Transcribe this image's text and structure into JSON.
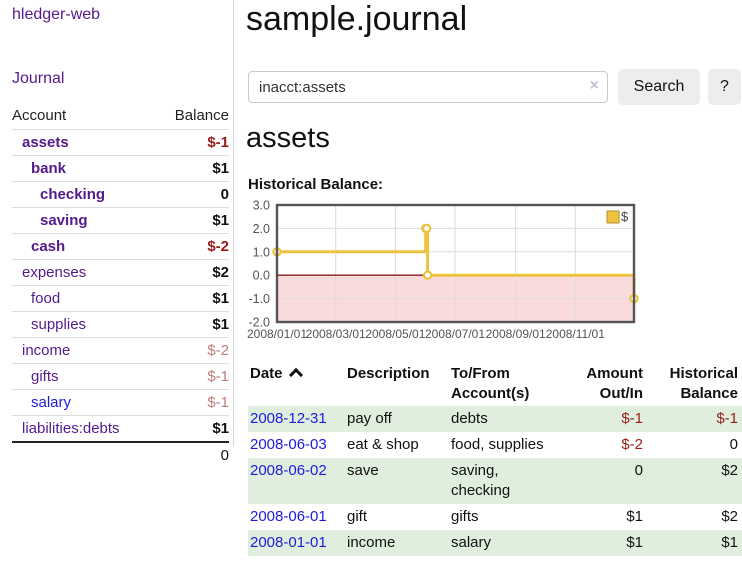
{
  "colors": {
    "purple_link": "#551a8b",
    "blue_link": "#1c1ce0",
    "negative_strong": "#9b1b1b",
    "negative_dim": "#bd7d7d",
    "row_green": "#dfeedd",
    "button_bg": "#ededed"
  },
  "sidebar": {
    "brand": "hledger-web",
    "nav_journal": "Journal",
    "accounts": {
      "headers": {
        "account": "Account",
        "balance": "Balance"
      },
      "rows": [
        {
          "name": "assets",
          "depth": 1,
          "bold": true,
          "balance": "$-1",
          "balance_class": "neg"
        },
        {
          "name": "bank",
          "depth": 2,
          "bold": true,
          "balance": "$1",
          "balance_class": "pos"
        },
        {
          "name": "checking",
          "depth": 3,
          "bold": true,
          "balance": "0",
          "balance_class": "pos"
        },
        {
          "name": "saving",
          "depth": 3,
          "bold": true,
          "balance": "$1",
          "balance_class": "pos"
        },
        {
          "name": "cash",
          "depth": 2,
          "bold": true,
          "balance": "$-2",
          "balance_class": "neg"
        },
        {
          "name": "expenses",
          "depth": 1,
          "bold": false,
          "balance": "$2",
          "balance_class": "pos"
        },
        {
          "name": "food",
          "depth": 2,
          "bold": false,
          "balance": "$1",
          "balance_class": "pos"
        },
        {
          "name": "supplies",
          "depth": 2,
          "bold": false,
          "balance": "$1",
          "balance_class": "pos"
        },
        {
          "name": "income",
          "depth": 1,
          "bold": false,
          "balance": "$-2",
          "balance_class": "negdim"
        },
        {
          "name": "gifts",
          "depth": 2,
          "bold": false,
          "balance": "$-1",
          "balance_class": "negdim"
        },
        {
          "name": "salary",
          "depth": 2,
          "bold": false,
          "blue": true,
          "balance": "$-1",
          "balance_class": "negdim"
        },
        {
          "name": "liabilities:debts",
          "depth": 1,
          "bold": false,
          "balance": "$1",
          "balance_class": "pos"
        }
      ],
      "total": "0"
    }
  },
  "main": {
    "title": "sample.journal",
    "search": {
      "query": "inacct:assets",
      "clear_icon": "×",
      "button": "Search",
      "help": "?"
    },
    "account_heading": "assets",
    "section_label": "Historical Balance:"
  },
  "chart_data": {
    "type": "line",
    "step": true,
    "title": "Historical Balance",
    "legend": {
      "label": "$",
      "position": "top-right"
    },
    "xrange": [
      "2008-01-01",
      "2008-12-31"
    ],
    "ylim": [
      -2,
      3
    ],
    "yticks": [
      "3.0",
      "2.0",
      "1.0",
      "0.0",
      "-1.0",
      "-2.0"
    ],
    "xtick_labels": [
      "2008/01/01",
      "2008/03/01",
      "2008/05/01",
      "2008/07/01",
      "2008/09/01",
      "2008/11/01"
    ],
    "series": [
      {
        "name": "$",
        "color": "#edc240",
        "points": [
          {
            "date": "2008-01-01",
            "value": 1
          },
          {
            "date": "2008-06-01",
            "value": 2
          },
          {
            "date": "2008-06-02",
            "value": 2
          },
          {
            "date": "2008-06-03",
            "value": 0
          },
          {
            "date": "2008-12-31",
            "value": -1
          }
        ]
      }
    ],
    "grid": true,
    "negative_region_fill": "#f9dbdb",
    "zero_line_color": "#8b1a1a",
    "grid_color": "#dcdcdc",
    "border_color": "#545454",
    "tick_label_color": "#545454"
  },
  "register": {
    "headers": {
      "date": "Date",
      "sort_icon": "chevron-up",
      "description": "Description",
      "accounts_line1": "To/From",
      "accounts_line2": "Account(s)",
      "amount_line1": "Amount",
      "amount_line2": "Out/In",
      "balance_line1": "Historical",
      "balance_line2": "Balance"
    },
    "rows": [
      {
        "date": "2008-12-31",
        "description": "pay off",
        "accounts": "debts",
        "amount": "$-1",
        "amount_negative": true,
        "balance": "$-1",
        "balance_negative": true
      },
      {
        "date": "2008-06-03",
        "description": "eat & shop",
        "accounts": "food, supplies",
        "amount": "$-2",
        "amount_negative": true,
        "balance": "0",
        "balance_negative": false
      },
      {
        "date": "2008-06-02",
        "description": "save",
        "accounts": "saving, checking",
        "amount": "0",
        "amount_negative": false,
        "balance": "$2",
        "balance_negative": false
      },
      {
        "date": "2008-06-01",
        "description": "gift",
        "accounts": "gifts",
        "amount": "$1",
        "amount_negative": false,
        "balance": "$2",
        "balance_negative": false
      },
      {
        "date": "2008-01-01",
        "description": "income",
        "accounts": "salary",
        "amount": "$1",
        "amount_negative": false,
        "balance": "$1",
        "balance_negative": false
      }
    ]
  }
}
